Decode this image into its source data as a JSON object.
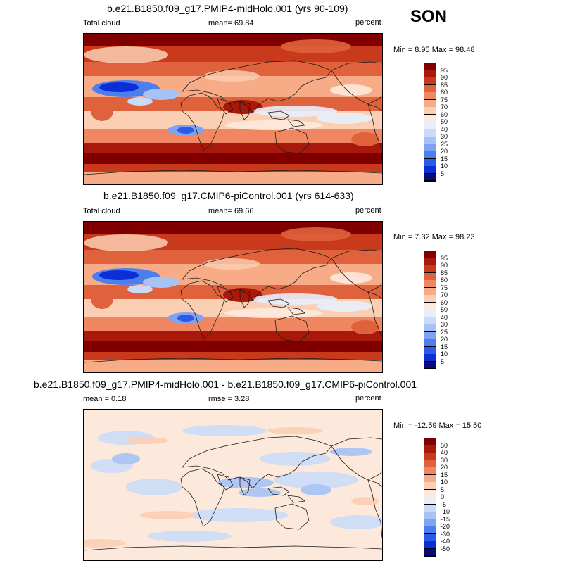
{
  "season": "SON",
  "palettes": {
    "abs": [
      "#0a0a7a",
      "#0b2fd6",
      "#2a5ae8",
      "#4d7ef0",
      "#7fa3f2",
      "#a7c2f4",
      "#cadbf7",
      "#e8eefb",
      "#fde9dc",
      "#fbcfb3",
      "#f7ab86",
      "#f18762",
      "#e0623c",
      "#c93a1d",
      "#a8180b",
      "#800000"
    ],
    "diff": [
      "#0a0a7a",
      "#0b2fd6",
      "#2a5ae8",
      "#4d7ef0",
      "#7fa3f2",
      "#a7c2f4",
      "#cadbf7",
      "#e8eefb",
      "#fde9dc",
      "#fbcfb3",
      "#f7ab86",
      "#f18762",
      "#e0623c",
      "#c93a1d",
      "#a8180b",
      "#800000"
    ]
  },
  "panels": [
    {
      "title": "b.e21.B1850.f09_g17.PMIP4-midHolo.001 (yrs 90-109)",
      "left_label": "Total cloud",
      "mid_label": "mean=  69.84",
      "right_label": "percent",
      "minmax": "Min =  8.95 Max =  98.48",
      "levels": [
        "95",
        "90",
        "85",
        "80",
        "75",
        "70",
        "60",
        "50",
        "40",
        "30",
        "25",
        "20",
        "15",
        "10",
        "5"
      ],
      "palette": "abs"
    },
    {
      "title": "b.e21.B1850.f09_g17.CMIP6-piControl.001 (yrs 614-633)",
      "left_label": "Total cloud",
      "mid_label": "mean=  69.66",
      "right_label": "percent",
      "minmax": "Min =  7.32 Max =  98.23",
      "levels": [
        "95",
        "90",
        "85",
        "80",
        "75",
        "70",
        "60",
        "50",
        "40",
        "30",
        "25",
        "20",
        "15",
        "10",
        "5"
      ],
      "palette": "abs"
    },
    {
      "title": "b.e21.B1850.f09_g17.PMIP4-midHolo.001 - b.e21.B1850.f09_g17.CMIP6-piControl.001",
      "left_label": "mean =   0.18",
      "mid_label": "rmse =   3.28",
      "right_label": "percent",
      "minmax": "Min = -12.59 Max =  15.50",
      "levels": [
        "50",
        "40",
        "30",
        "20",
        "15",
        "10",
        "5",
        "0",
        "-5",
        "-10",
        "-15",
        "-20",
        "-30",
        "-40",
        "-50"
      ],
      "palette": "diff"
    }
  ]
}
